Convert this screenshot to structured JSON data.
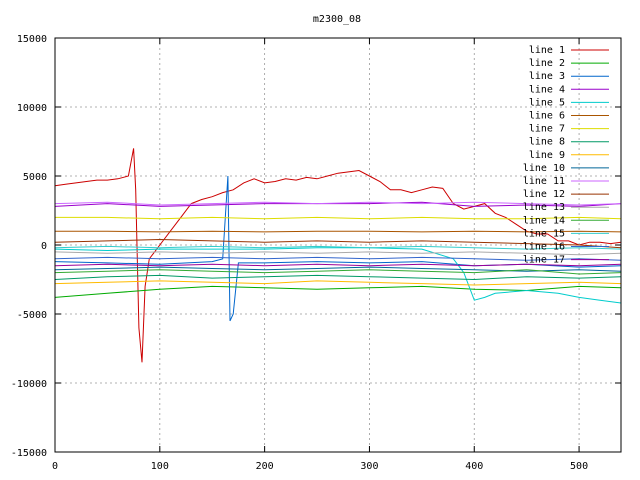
{
  "chart_data": {
    "type": "line",
    "title": "m2300_08",
    "xlabel": "",
    "ylabel": "",
    "xlim": [
      0,
      540
    ],
    "ylim": [
      -15000,
      15000
    ],
    "xticks": [
      0,
      100,
      200,
      300,
      400,
      500
    ],
    "yticks": [
      -15000,
      -10000,
      -5000,
      0,
      5000,
      10000,
      15000
    ],
    "grid": true,
    "legend_position": "top-right",
    "series": [
      {
        "name": "line 1",
        "color": "#cc0000",
        "x": [
          0,
          10,
          20,
          30,
          40,
          50,
          60,
          70,
          75,
          77,
          80,
          83,
          86,
          90,
          95,
          100,
          110,
          120,
          130,
          140,
          150,
          160,
          170,
          180,
          190,
          200,
          210,
          220,
          230,
          240,
          250,
          260,
          270,
          280,
          290,
          300,
          310,
          320,
          330,
          340,
          350,
          360,
          370,
          380,
          390,
          400,
          410,
          420,
          430,
          440,
          450,
          460,
          470,
          480,
          490,
          500,
          510,
          520,
          530,
          540
        ],
        "y": [
          4300,
          4400,
          4500,
          4600,
          4700,
          4700,
          4800,
          5000,
          7000,
          4000,
          -6000,
          -8500,
          -3000,
          -1000,
          -500,
          0,
          1000,
          2000,
          3000,
          3300,
          3500,
          3800,
          4000,
          4500,
          4800,
          4500,
          4600,
          4800,
          4700,
          4900,
          4800,
          5000,
          5200,
          5300,
          5400,
          5000,
          4600,
          4000,
          4000,
          3800,
          4000,
          4200,
          4100,
          3000,
          2600,
          2800,
          3000,
          2300,
          2000,
          1500,
          1000,
          800,
          800,
          300,
          300,
          0,
          200,
          200,
          100,
          200
        ]
      },
      {
        "name": "line 2",
        "color": "#00aa00",
        "x": [
          0,
          50,
          100,
          150,
          200,
          250,
          300,
          350,
          400,
          450,
          500,
          540
        ],
        "y": [
          -3800,
          -3500,
          -3200,
          -3000,
          -3100,
          -3200,
          -3100,
          -3000,
          -3200,
          -3300,
          -3000,
          -3100
        ]
      },
      {
        "name": "line 3",
        "color": "#0066cc",
        "x": [
          0,
          50,
          100,
          150,
          160,
          165,
          167,
          170,
          175,
          200,
          250,
          300,
          350,
          400,
          450,
          500,
          540
        ],
        "y": [
          -1200,
          -1300,
          -1400,
          -1200,
          -1000,
          5000,
          -5500,
          -5000,
          -1300,
          -1300,
          -1200,
          -1300,
          -1200,
          -1500,
          -1400,
          -1600,
          -1500
        ]
      },
      {
        "name": "line 4",
        "color": "#9900cc",
        "x": [
          0,
          50,
          100,
          150,
          200,
          250,
          300,
          350,
          400,
          450,
          500,
          540
        ],
        "y": [
          2800,
          3000,
          2800,
          2900,
          3000,
          3000,
          3000,
          3100,
          2800,
          2900,
          2800,
          3000
        ]
      },
      {
        "name": "line 5",
        "color": "#00cccc",
        "x": [
          0,
          50,
          100,
          150,
          200,
          250,
          300,
          350,
          380,
          390,
          400,
          410,
          420,
          450,
          480,
          500,
          520,
          540
        ],
        "y": [
          -300,
          -400,
          -300,
          -300,
          -300,
          -200,
          -200,
          -300,
          -1000,
          -2000,
          -4000,
          -3800,
          -3500,
          -3300,
          -3500,
          -3800,
          -4000,
          -4200
        ]
      },
      {
        "name": "line 6",
        "color": "#aa5500",
        "x": [
          0,
          50,
          100,
          150,
          200,
          250,
          300,
          350,
          400,
          450,
          500,
          540
        ],
        "y": [
          1000,
          1000,
          950,
          1000,
          950,
          1000,
          1000,
          950,
          1000,
          950,
          1000,
          950
        ]
      },
      {
        "name": "line 7",
        "color": "#dddd00",
        "x": [
          0,
          50,
          100,
          150,
          200,
          250,
          300,
          350,
          400,
          450,
          500,
          540
        ],
        "y": [
          2000,
          2000,
          1900,
          2000,
          1900,
          2000,
          1900,
          2000,
          1900,
          1900,
          2000,
          1900
        ]
      },
      {
        "name": "line 8",
        "color": "#009966",
        "x": [
          0,
          50,
          100,
          150,
          200,
          250,
          300,
          350,
          400,
          450,
          500,
          540
        ],
        "y": [
          -2500,
          -2300,
          -2200,
          -2400,
          -2300,
          -2200,
          -2300,
          -2400,
          -2500,
          -2300,
          -2400,
          -2300
        ]
      },
      {
        "name": "line 9",
        "color": "#ffbb00",
        "x": [
          0,
          50,
          100,
          150,
          200,
          250,
          300,
          350,
          400,
          450,
          500,
          540
        ],
        "y": [
          -2800,
          -2700,
          -2600,
          -2700,
          -2800,
          -2600,
          -2700,
          -2800,
          -2900,
          -2800,
          -2700,
          -2800
        ]
      },
      {
        "name": "line 10",
        "color": "#006699",
        "x": [
          0,
          50,
          100,
          150,
          200,
          250,
          300,
          350,
          400,
          450,
          500,
          540
        ],
        "y": [
          -1800,
          -1700,
          -1600,
          -1700,
          -1800,
          -1700,
          -1600,
          -1700,
          -1800,
          -1900,
          -1800,
          -1900
        ]
      },
      {
        "name": "line 11",
        "color": "#cc66ff",
        "x": [
          0,
          50,
          100,
          150,
          200,
          250,
          300,
          350,
          400,
          450,
          500,
          540
        ],
        "y": [
          3000,
          3100,
          2900,
          3000,
          3100,
          3000,
          3100,
          3000,
          3100,
          3000,
          2900,
          3000
        ]
      },
      {
        "name": "line 12",
        "color": "#993300",
        "x": [
          0,
          50,
          100,
          150,
          200,
          250,
          300,
          350,
          400,
          450,
          500,
          540
        ],
        "y": [
          200,
          300,
          400,
          300,
          200,
          300,
          200,
          300,
          200,
          100,
          0,
          -200
        ]
      },
      {
        "name": "line 13",
        "color": "#aaaaaa",
        "x": [
          0,
          50,
          100,
          150,
          200,
          250,
          300,
          350,
          400,
          450,
          500,
          540
        ],
        "y": [
          -500,
          -600,
          -500,
          -600,
          -500,
          -600,
          -500,
          -600,
          -500,
          -600,
          -700,
          -600
        ]
      },
      {
        "name": "line 14",
        "color": "#33aa33",
        "x": [
          0,
          50,
          100,
          150,
          200,
          250,
          300,
          350,
          400,
          450,
          500,
          540
        ],
        "y": [
          -2000,
          -1900,
          -1800,
          -1900,
          -2000,
          -1900,
          -1800,
          -1900,
          -2000,
          -1800,
          -2100,
          -2000
        ]
      },
      {
        "name": "line 15",
        "color": "#33cccc",
        "x": [
          0,
          50,
          100,
          150,
          200,
          250,
          300,
          350,
          400,
          450,
          500,
          540
        ],
        "y": [
          -200,
          -100,
          -200,
          -100,
          -200,
          -100,
          -200,
          -100,
          -200,
          -300,
          -200,
          -300
        ]
      },
      {
        "name": "line 16",
        "color": "#3366cc",
        "x": [
          0,
          50,
          100,
          150,
          200,
          250,
          300,
          350,
          400,
          450,
          500,
          540
        ],
        "y": [
          -1000,
          -900,
          -1000,
          -900,
          -1000,
          -900,
          -1000,
          -900,
          -1000,
          -1100,
          -1000,
          -1100
        ]
      },
      {
        "name": "line 17",
        "color": "#990099",
        "x": [
          0,
          50,
          100,
          150,
          200,
          250,
          300,
          350,
          400,
          450,
          500,
          540
        ],
        "y": [
          -1500,
          -1400,
          -1500,
          -1400,
          -1500,
          -1400,
          -1500,
          -1400,
          -1500,
          -1400,
          -1500,
          -1400
        ]
      }
    ]
  }
}
